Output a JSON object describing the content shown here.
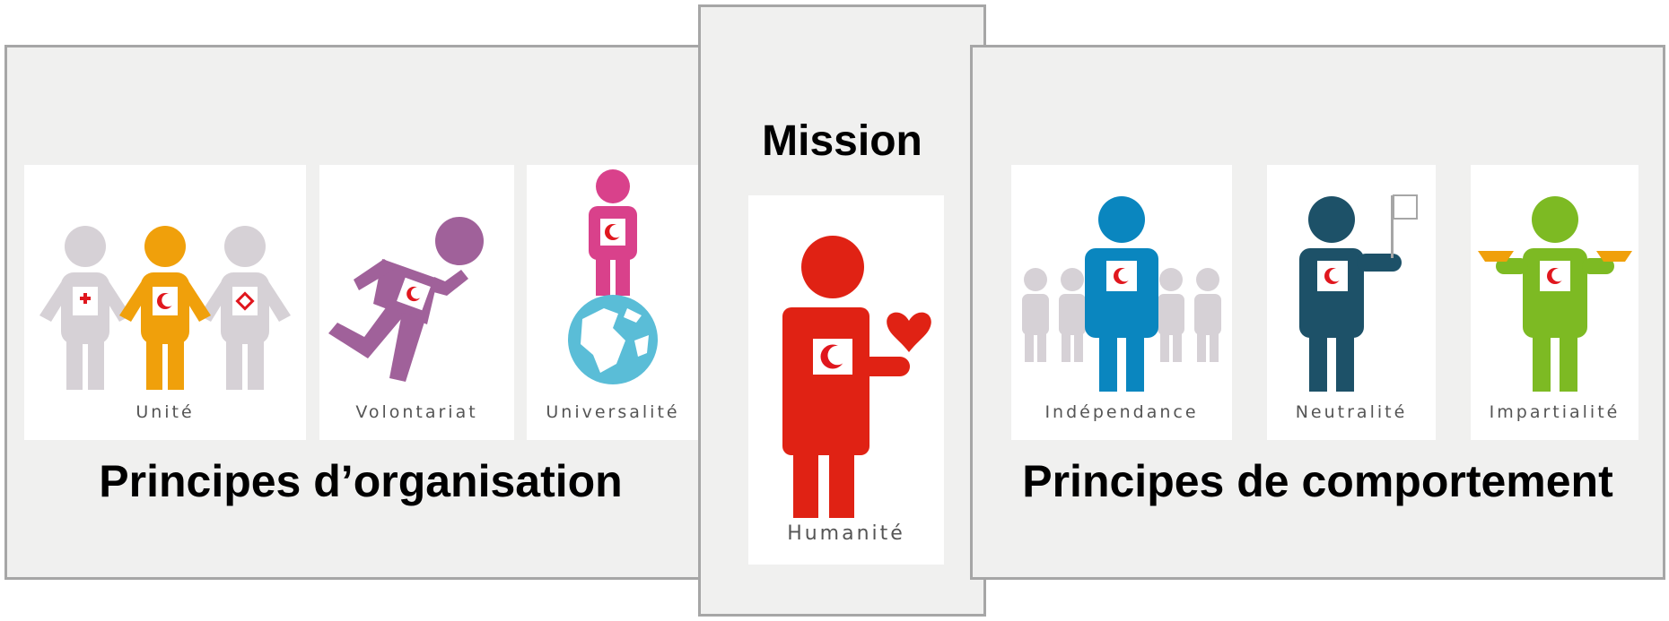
{
  "mission": {
    "title": "Mission",
    "card": {
      "label": "Humanité"
    }
  },
  "left_section": {
    "title": "Principes d’organisation",
    "cards": [
      {
        "label": "Unité"
      },
      {
        "label": "Volontariat"
      },
      {
        "label": "Universalité"
      }
    ]
  },
  "right_section": {
    "title": "Principes de comportement",
    "cards": [
      {
        "label": "Indépendance"
      },
      {
        "label": "Neutralité"
      },
      {
        "label": "Impartialité"
      }
    ]
  },
  "colors": {
    "panel_background": "#f0f0ef",
    "panel_border": "#a6a6a6",
    "unite": "#f0a00b",
    "unite_companions": "#d6d1d6",
    "volontariat": "#a0619a",
    "universalite": "#d9418b",
    "globe": "#5abdd7",
    "humanite": "#e02214",
    "independance": "#0a86bf",
    "neutralite": "#1d5168",
    "impartialite": "#7dba23",
    "scales": "#f0a00b",
    "emblem_red": "#e0171e"
  },
  "icons": [
    "three-people-icon",
    "running-person-icon",
    "person-on-globe-icon",
    "person-with-heart-icon",
    "person-in-crowd-icon",
    "person-with-flag-icon",
    "person-with-scales-icon",
    "red-crescent-emblem-icon",
    "red-cross-emblem-icon",
    "red-crystal-emblem-icon"
  ]
}
